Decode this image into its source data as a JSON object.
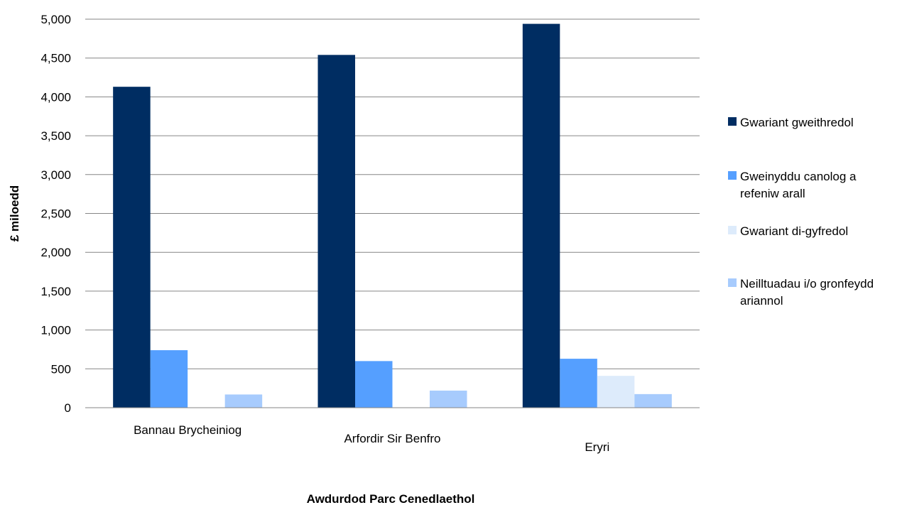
{
  "chart_data": {
    "type": "bar",
    "title": "",
    "xlabel": "Awdurdod Parc Cenedlaethol",
    "ylabel": "£ miloedd",
    "ylim": [
      0,
      5000
    ],
    "ytick_step": 500,
    "yticks": [
      "0",
      "500",
      "1,000",
      "1,500",
      "2,000",
      "2,500",
      "3,000",
      "3,500",
      "4,000",
      "4,500",
      "5,000"
    ],
    "grid": true,
    "legend_position": "right",
    "categories": [
      "Bannau Brycheiniog",
      "Arfordir Sir Benfro",
      "Eryri"
    ],
    "series": [
      {
        "name": "Gwariant gweithredol",
        "legend_lines": [
          "Gwariant gweithredol"
        ],
        "color": "#002D62",
        "values": [
          4130,
          4540,
          4940
        ]
      },
      {
        "name": "Gweinyddu canolog a refeniw arall",
        "legend_lines": [
          "Gweinyddu canolog a",
          "refeniw arall"
        ],
        "color": "#559FFF",
        "values": [
          740,
          600,
          630
        ]
      },
      {
        "name": "Gwariant di-gyfredol",
        "legend_lines": [
          "Gwariant di-gyfredol"
        ],
        "color": "#DDEBFB",
        "values": [
          0,
          0,
          410
        ]
      },
      {
        "name": "Neilltuadau i/o gronfeydd ariannol",
        "legend_lines": [
          "Neilltuadau i/o gronfeydd",
          "ariannol"
        ],
        "color": "#A7CBFD",
        "values": [
          170,
          220,
          175
        ]
      }
    ]
  }
}
